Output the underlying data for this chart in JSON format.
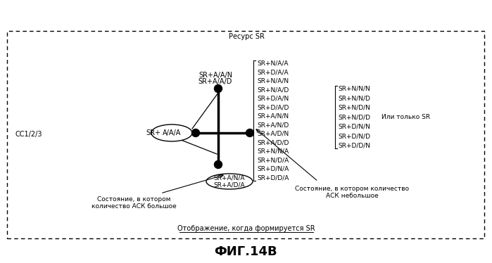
{
  "title": "ФИГ.14В",
  "top_label": "Ресурс SR",
  "bottom_label": "Отображение, когда формируется SR",
  "left_label": "СС1/2/3",
  "center_node_prefix": "SR+",
  "center_node_label": "A/A/A",
  "top_node_labels": [
    "SR+A/A/N",
    "SR+A/A/D"
  ],
  "bottom_node_labels": [
    "SR+A/N/A",
    "SR+A/D/A"
  ],
  "right_labels_col1": [
    "SR+N/A/A",
    "SR+D/A/A",
    "SR+N/A/N",
    "SR+N/A/D",
    "SR+D/A/N",
    "SR+D/A/D",
    "SR+A/N/N",
    "SR+A/N/D",
    "SR+A/D/N",
    "SR+A/D/D",
    "SR+N/N/A",
    "SR+N/D/A",
    "SR+D/N/A",
    "SR+D/D/A"
  ],
  "right_labels_col2": [
    "SR+N/N/N",
    "SR+N/N/D",
    "SR+N/D/N",
    "SR+N/D/D",
    "SR+D/N/N",
    "SR+D/N/D",
    "SR+D/D/N"
  ],
  "or_label": "Или только SR",
  "annotation_left": "Состояние, в котором\nколичество АСК большое",
  "annotation_right": "Состояние, в котором количество\nАСК небольшое",
  "bg_color": "#ffffff",
  "node_color": "#000000",
  "line_color": "#000000",
  "text_color": "#000000",
  "font_size": 7.0,
  "title_font_size": 13
}
